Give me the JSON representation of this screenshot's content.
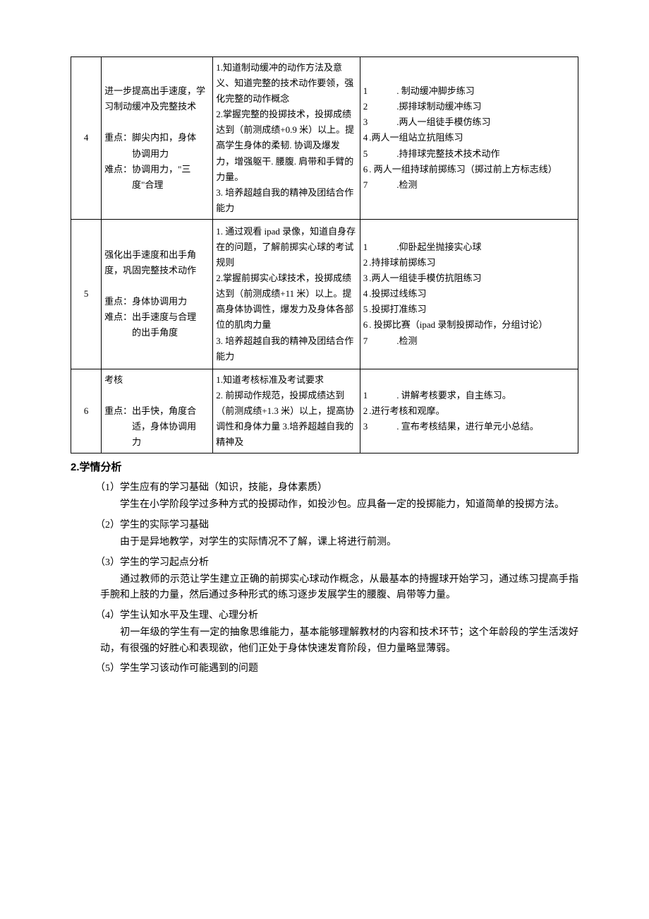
{
  "table": {
    "rows": [
      {
        "num": "4",
        "col2_lines": [
          "进一步提高出手速度，学习制动缓冲及完整技术",
          "",
          "重点：脚尖内扣，身体",
          "　　　协调用力",
          "难点：协调用力，\"三",
          "　　　度\"合理"
        ],
        "col3_lines": [
          "1.知道制动缓冲的动作方法及意义、知道完整的技术动作要领，强化完整的动作概念",
          "2.掌握完整的投掷技术，投掷成绩达到（前测成绩+0.9 米）以上。提高学生身体的柔韧. 协调及爆发力，增强躯干. 腰腹. 肩带和手臂的力量。",
          "3. 培养超越自我的精神及团结合作能力"
        ],
        "col4_nums": [
          "1",
          "2",
          "3",
          "4",
          "5",
          "6",
          "7"
        ],
        "col4_items": [
          "　　　. 制动缓冲脚步练习",
          "　　　.掷排球制动缓冲练习",
          "　　　.两人一组徒手模仿练习",
          ".两人一组站立抗阻练习",
          "　　　.持排球完整技术技术动作",
          ". 两人一组持球前掷练习（掷过前上方标志线）",
          "　　　.检测"
        ]
      },
      {
        "num": "5",
        "col2_lines": [
          "强化出手速度和出手角度，巩固完整技术动作",
          "",
          "重点：身体协调用力",
          "难点：出手速度与合理",
          "　　　的出手角度"
        ],
        "col3_lines": [
          "1. 通过观看 ipad 录像，知道自身存在的问题，了解前掷实心球的考试规则",
          "2.掌握前掷实心球技术，投掷成绩达到（前测成绩+11 米）以上。提高身体协调性，爆发力及身体各部位的肌肉力量",
          "3. 培养超越自我的精神及团结合作能力"
        ],
        "col4_nums": [
          "1",
          "2",
          "3",
          "4",
          "5",
          "6",
          "7"
        ],
        "col4_items": [
          "　　　.仰卧起坐抛接实心球",
          ".持排球前掷练习",
          ".两人一组徒手模仿抗阻练习",
          ".投掷过线练习",
          ".投掷打准练习",
          ". 投掷比赛（ipad 录制投掷动作，分组讨论）",
          "　　　.检测"
        ]
      },
      {
        "num": "6",
        "col2_lines": [
          "考核",
          "",
          "重点：出手快，角度合",
          "　　　适，身体协调用",
          "　　　力"
        ],
        "col3_lines": [
          "1.知道考核标准及考试要求",
          "2. 前掷动作规范，投掷成绩达到（前测成绩+1.3 米）以上，提高协调性和身体力量 3.培养超越自我的精神及"
        ],
        "col4_nums": [
          "1",
          "2",
          "3"
        ],
        "col4_items": [
          "　　　. 讲解考核要求，自主练习。",
          ".进行考核和观摩。",
          "　　　. 宣布考核结果，进行单元小总结。"
        ]
      }
    ]
  },
  "section": {
    "title": "2.学情分析",
    "subs": [
      {
        "title": "（1）学生应有的学习基础（知识，技能，身体素质）",
        "body": [
          "　　学生在小学阶段学过多种方式的投掷动作，如投沙包。应具备一定的投掷能力，知道简单的投掷方法。"
        ]
      },
      {
        "title": "（2）学生的实际学习基础",
        "body": [
          "　　由于是异地教学，对学生的实际情况不了解，课上将进行前测。"
        ]
      },
      {
        "title": "（3）学生的学习起点分析",
        "body": [
          "　　通过教师的示范让学生建立正确的前掷实心球动作概念，从最基本的持握球开始学习，通过练习提高手指手腕和上肢的力量，然后通过多种形式的练习逐步发展学生的腰腹、肩带等力量。"
        ]
      },
      {
        "title": "（4）学生认知水平及生理、心理分析",
        "body": [
          "　　初一年级的学生有一定的抽象思维能力，基本能够理解教材的内容和技术环节；这个年龄段的学生活泼好动，有很强的好胜心和表现欲，他们正处于身体快速发育阶段，但力量略显薄弱。"
        ]
      },
      {
        "title": "（5）学生学习该动作可能遇到的问题",
        "body": []
      }
    ]
  }
}
